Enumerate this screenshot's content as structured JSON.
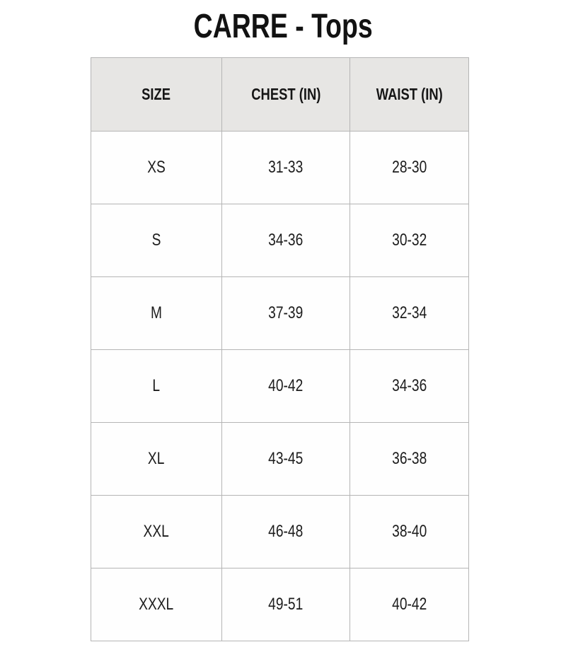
{
  "title": "CARRE - Tops",
  "chart_data": {
    "type": "table",
    "title": "CARRE - Tops",
    "columns": [
      "SIZE",
      "CHEST (IN)",
      "WAIST (IN)"
    ],
    "rows": [
      [
        "XS",
        "31-33",
        "28-30"
      ],
      [
        "S",
        "34-36",
        "30-32"
      ],
      [
        "M",
        "37-39",
        "32-34"
      ],
      [
        "L",
        "40-42",
        "34-36"
      ],
      [
        "XL",
        "43-45",
        "36-38"
      ],
      [
        "XXL",
        "46-48",
        "38-40"
      ],
      [
        "XXXL",
        "49-51",
        "40-42"
      ]
    ],
    "layout": {
      "grid": "on",
      "header_position": "top",
      "text_align": "center"
    }
  },
  "colors": {
    "page_background": "#ffffff",
    "header_background": "#e7e6e4",
    "cell_background": "#fefefe",
    "border": "#b5b5b5",
    "text": "#1a1a1a"
  }
}
